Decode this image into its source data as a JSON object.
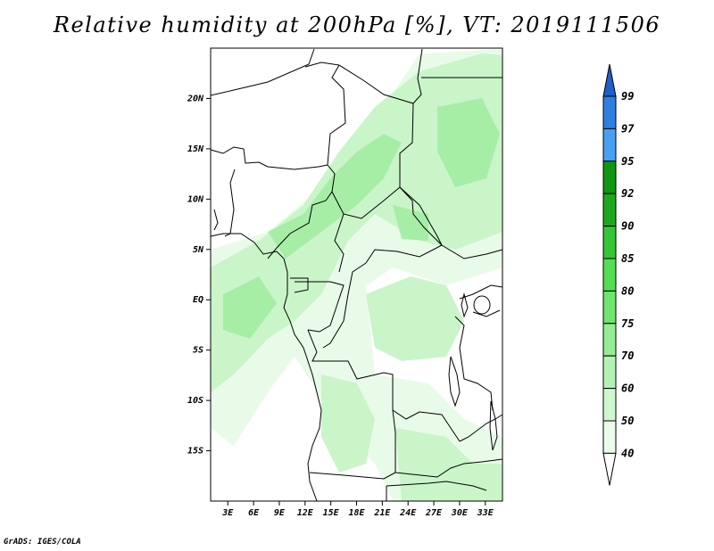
{
  "title": "Relative humidity at 200hPa [%], VT: 2019111506",
  "credit": "GrADS: IGES/COLA",
  "map": {
    "lon_ticks": [
      "3E",
      "6E",
      "9E",
      "12E",
      "15E",
      "18E",
      "21E",
      "24E",
      "27E",
      "30E",
      "33E"
    ],
    "lat_ticks": [
      "20N",
      "15N",
      "10N",
      "5N",
      "EQ",
      "5S",
      "10S",
      "15S"
    ],
    "lon_range": [
      1,
      35
    ],
    "lat_range": [
      -20,
      25
    ]
  },
  "colorbar": {
    "levels": [
      "99",
      "97",
      "95",
      "92",
      "90",
      "85",
      "80",
      "75",
      "70",
      "60",
      "50",
      "40"
    ],
    "fills": [
      "#1e5fc8",
      "#2f7fe0",
      "#4aa0f0",
      "#119611",
      "#1fa81f",
      "#37c437",
      "#55dd55",
      "#6fe56f",
      "#95ec95",
      "#b4f2b4",
      "#cff7cf",
      "#eafcea",
      "#ffffff"
    ]
  },
  "field_colors": {
    "lightest": "#e8fbe8",
    "light": "#c9f5c9",
    "medium": "#a6eea6"
  }
}
